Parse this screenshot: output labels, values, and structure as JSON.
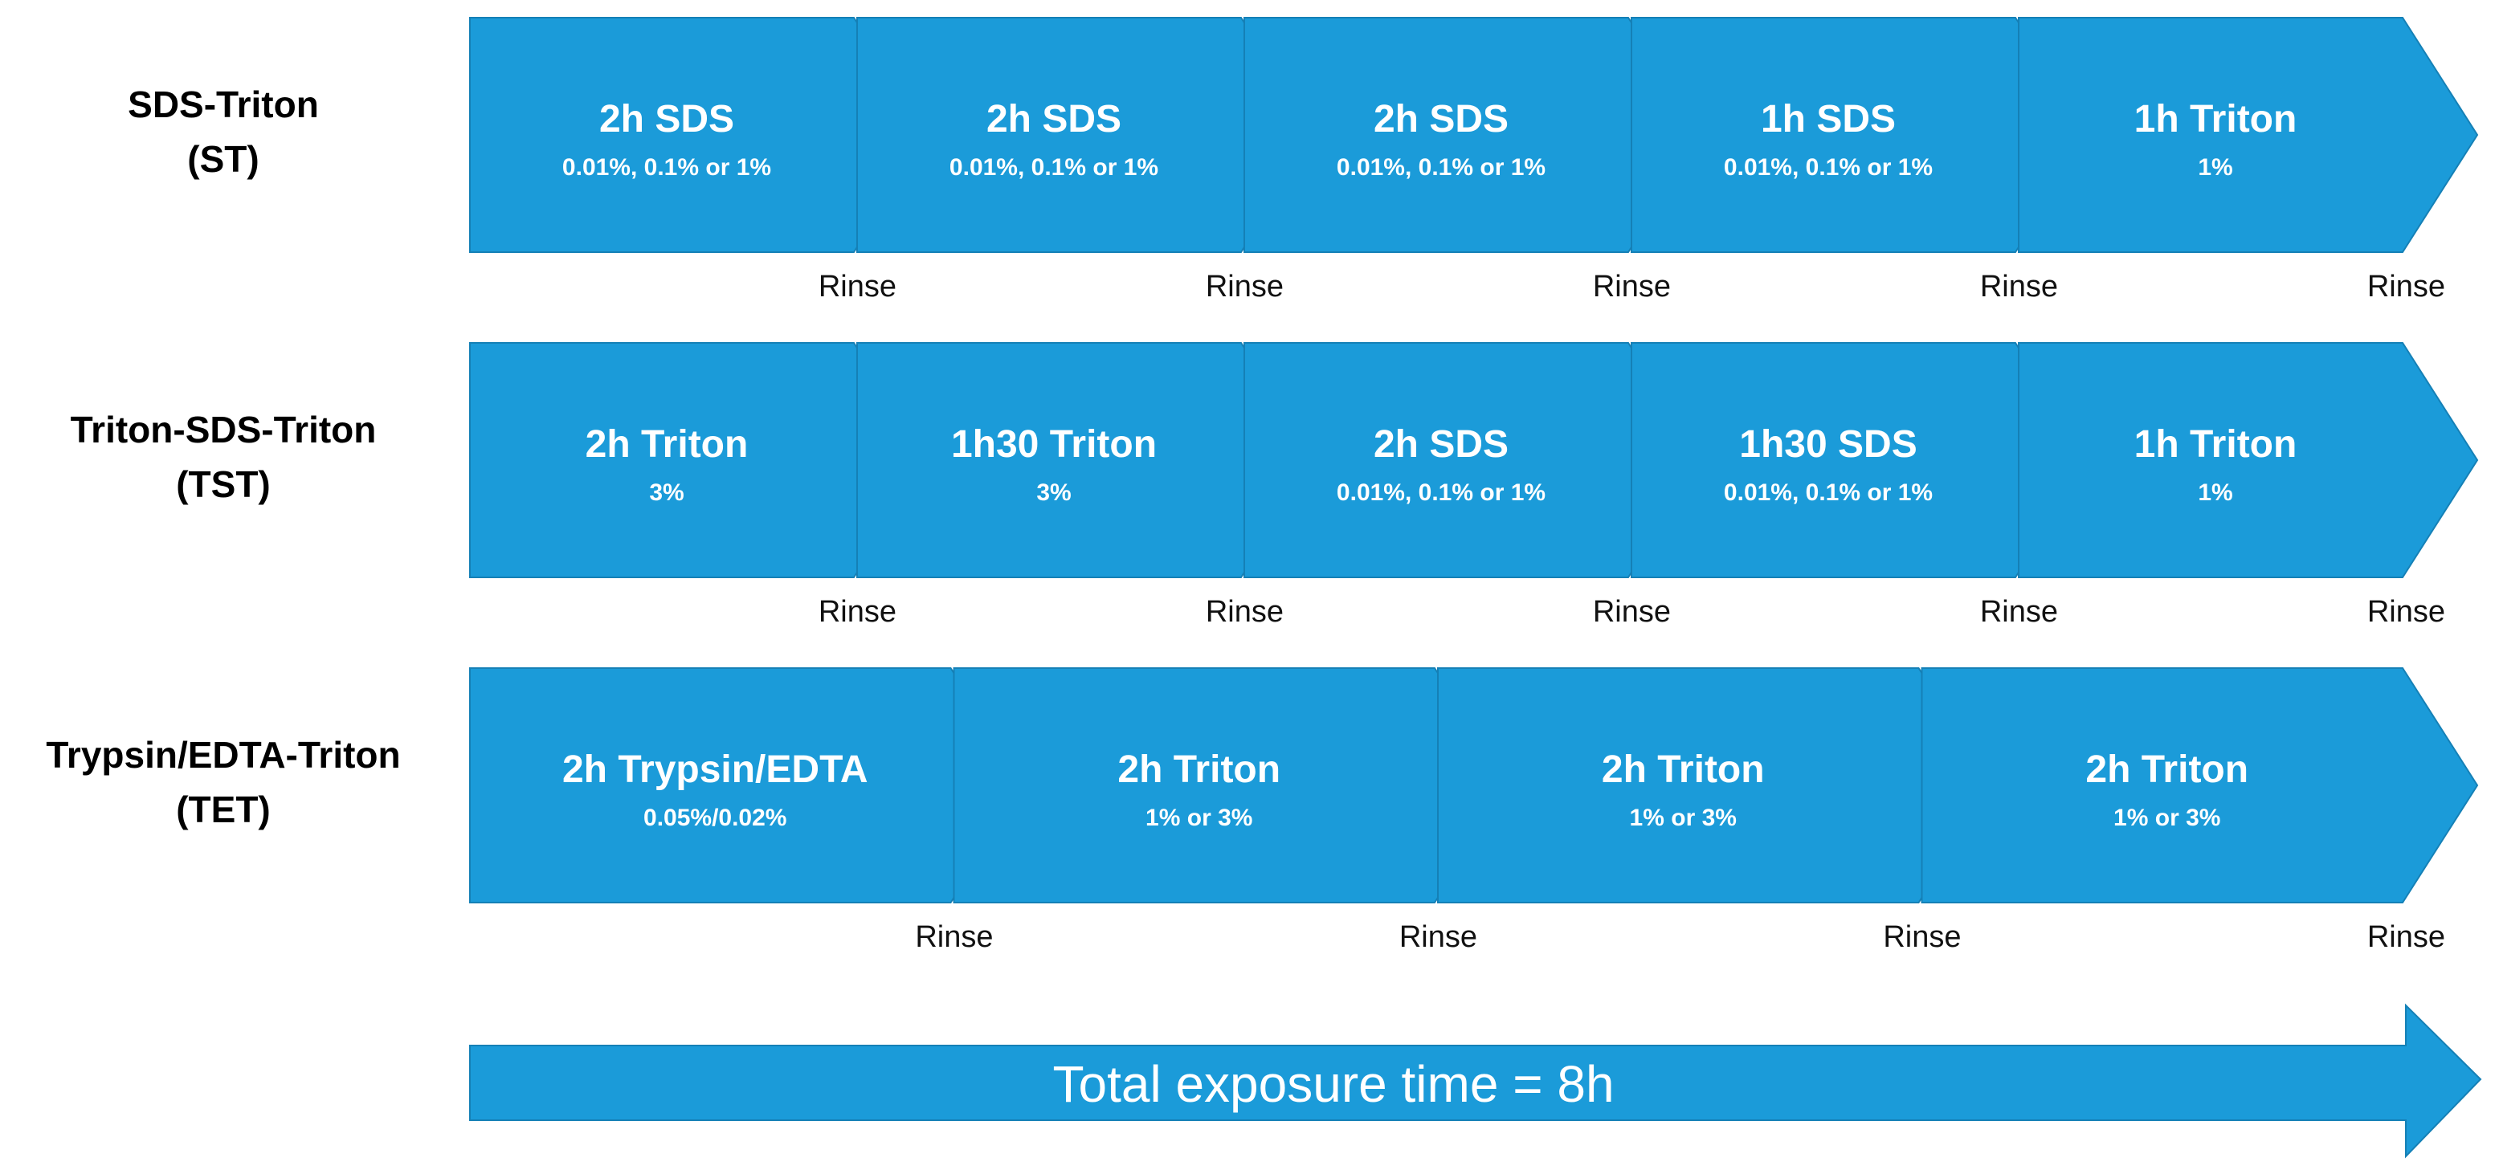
{
  "protocols": [
    {
      "name": "SDS-Triton",
      "abbr": "(ST)",
      "steps": [
        {
          "title": "2h SDS",
          "sub": "0.01%, 0.1% or 1%",
          "after": "Rinse"
        },
        {
          "title": "2h SDS",
          "sub": "0.01%, 0.1% or 1%",
          "after": "Rinse"
        },
        {
          "title": "2h SDS",
          "sub": "0.01%, 0.1% or 1%",
          "after": "Rinse"
        },
        {
          "title": "1h SDS",
          "sub": "0.01%, 0.1% or 1%",
          "after": "Rinse"
        },
        {
          "title": "1h Triton",
          "sub": "1%",
          "after": "Rinse"
        }
      ]
    },
    {
      "name": "Triton-SDS-Triton",
      "abbr": "(TST)",
      "steps": [
        {
          "title": "2h Triton",
          "sub": "3%",
          "after": "Rinse"
        },
        {
          "title": "1h30 Triton",
          "sub": "3%",
          "after": "Rinse"
        },
        {
          "title": "2h SDS",
          "sub": "0.01%, 0.1% or 1%",
          "after": "Rinse"
        },
        {
          "title": "1h30 SDS",
          "sub": "0.01%, 0.1% or 1%",
          "after": "Rinse"
        },
        {
          "title": "1h Triton",
          "sub": "1%",
          "after": "Rinse"
        }
      ]
    },
    {
      "name": "Trypsin/EDTA-Triton",
      "abbr": "(TET)",
      "steps": [
        {
          "title": "2h Trypsin/EDTA",
          "sub": "0.05%/0.02%",
          "after": "Rinse"
        },
        {
          "title": "2h Triton",
          "sub": "1% or 3%",
          "after": "Rinse"
        },
        {
          "title": "2h Triton",
          "sub": "1% or 3%",
          "after": "Rinse"
        },
        {
          "title": "2h Triton",
          "sub": "1% or 3%",
          "after": "Rinse"
        }
      ]
    }
  ],
  "total_label": "Total exposure time = 8h",
  "colors": {
    "arrow_fill": "#1b9bd9",
    "arrow_stroke": "#1580b6",
    "step_text": "#ffffff",
    "label_text": "#000000"
  }
}
